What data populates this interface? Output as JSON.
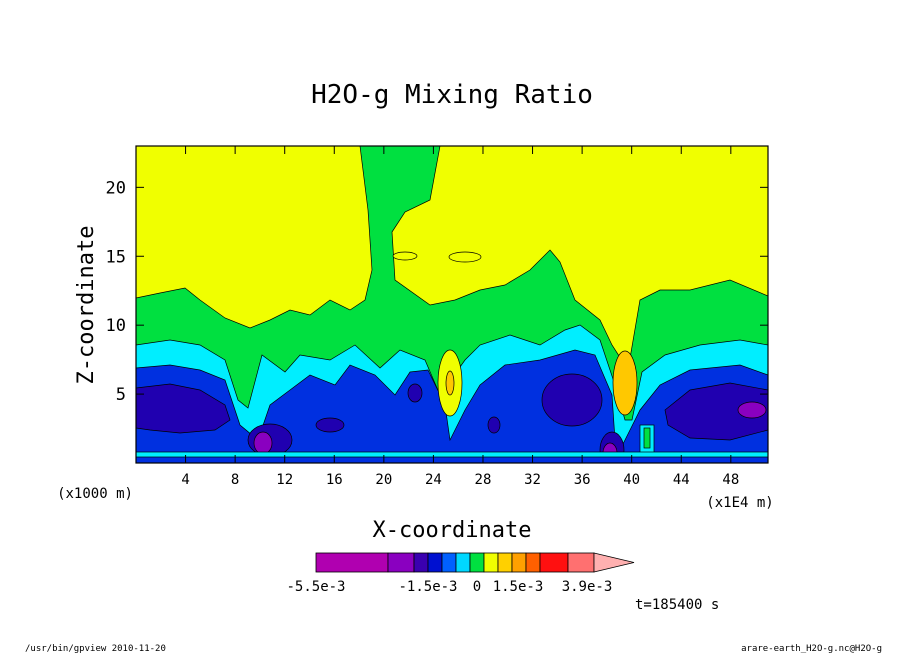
{
  "chart_data": {
    "type": "heatmap",
    "title": "H2O-g Mixing Ratio",
    "xlabel": "X-coordinate",
    "ylabel": "Z-coordinate",
    "x_unit": "(x1E4 m)",
    "y_unit": "(x1000 m)",
    "xlim": [
      0,
      51
    ],
    "ylim": [
      0,
      23
    ],
    "x_ticks": [
      "4",
      "8",
      "12",
      "16",
      "20",
      "24",
      "28",
      "32",
      "36",
      "40",
      "44",
      "48"
    ],
    "x_tick_values": [
      4,
      8,
      12,
      16,
      20,
      24,
      28,
      32,
      36,
      40,
      44,
      48
    ],
    "y_ticks": [
      "5",
      "10",
      "15",
      "20"
    ],
    "y_tick_values": [
      5,
      10,
      15,
      20
    ],
    "colorbar": {
      "labels": [
        "-5.5e-3",
        "-1.5e-3",
        "0",
        "1.5e-3",
        "3.9e-3"
      ],
      "colors": [
        "#b000b0",
        "#8a00c0",
        "#3a00b0",
        "#0010d0",
        "#0060ff",
        "#00d8ff",
        "#00e040",
        "#f0ff00",
        "#ffd000",
        "#ffa000",
        "#ff6000",
        "#ff1010",
        "#ff7070",
        "#ffb0b0"
      ]
    },
    "time_label": "t=185400 s"
  },
  "footer": {
    "left": "/usr/bin/gpview  2010-11-20",
    "right": "arare-earth_H2O-g.nc@H2O-g"
  },
  "colors": {
    "yellow": "#f0ff00",
    "green": "#00e040",
    "cyan": "#00eeff",
    "blue": "#0030e0",
    "navy": "#2000b0",
    "purple": "#8a00c0",
    "orange": "#ffc800"
  }
}
